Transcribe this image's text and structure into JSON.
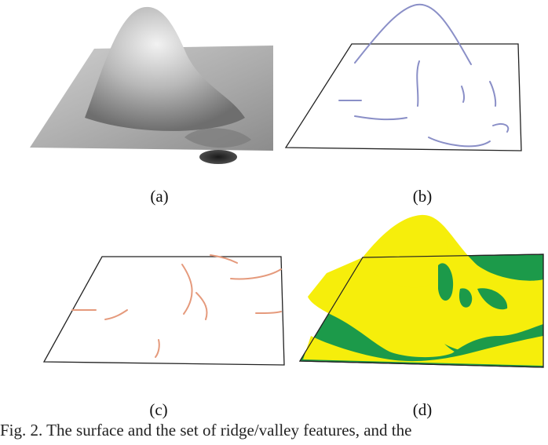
{
  "figure": {
    "panels": [
      {
        "id": "a",
        "label": "(a)"
      },
      {
        "id": "b",
        "label": "(b)"
      },
      {
        "id": "c",
        "label": "(c)"
      },
      {
        "id": "d",
        "label": "(d)"
      }
    ],
    "caption_text": "Fig. 2.  The surface and the set of ridge/valley features, and the"
  },
  "colors": {
    "surface_gray": "#9a9a9a",
    "ridge_lines": "#8a8fc7",
    "valley_lines": "#e59a7c",
    "region_yellow": "#f6ee0b",
    "region_green": "#1c9a4a"
  }
}
